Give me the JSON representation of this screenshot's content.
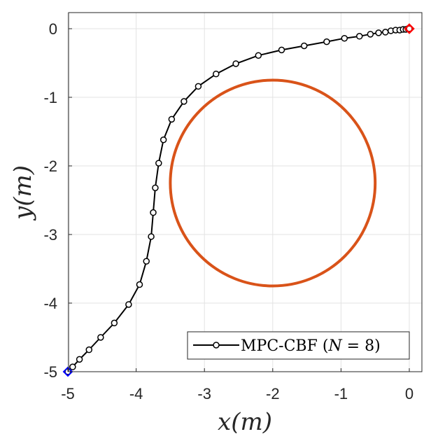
{
  "chart_data": {
    "type": "line",
    "xlabel": "x(m)",
    "ylabel": "y(m)",
    "xlim": [
      -5,
      0
    ],
    "ylim": [
      -5,
      0
    ],
    "x_ticks": [
      -5,
      -4,
      -3,
      -2,
      -1,
      0
    ],
    "y_ticks": [
      0,
      -1,
      -2,
      -3,
      -4,
      -5
    ],
    "x_tick_labels": [
      "-5",
      "-4",
      "-3",
      "-2",
      "-1",
      "0"
    ],
    "y_tick_labels": [
      "0",
      "-1",
      "-2",
      "-3",
      "-4",
      "-5"
    ],
    "grid": true,
    "legend_position": "bottom-right",
    "colors": {
      "trajectory": "#000000",
      "obstacle": "#d95319",
      "start_marker": "#0000ff",
      "goal_marker": "#ff0000",
      "grid": "#e3e3e3",
      "axis": "#262626"
    },
    "series": [
      {
        "name": "MPC-CBF (N = 8)",
        "marker": "circle",
        "x": [
          -5.0,
          -4.93,
          -4.83,
          -4.69,
          -4.52,
          -4.32,
          -4.11,
          -3.95,
          -3.85,
          -3.78,
          -3.75,
          -3.72,
          -3.67,
          -3.6,
          -3.48,
          -3.3,
          -3.09,
          -2.83,
          -2.54,
          -2.21,
          -1.87,
          -1.54,
          -1.21,
          -0.95,
          -0.73,
          -0.57,
          -0.45,
          -0.35,
          -0.27,
          -0.2,
          -0.14,
          -0.09,
          -0.05,
          -0.02,
          0.0
        ],
        "y": [
          -5.0,
          -4.93,
          -4.82,
          -4.68,
          -4.5,
          -4.29,
          -4.02,
          -3.73,
          -3.39,
          -3.03,
          -2.68,
          -2.32,
          -1.96,
          -1.62,
          -1.32,
          -1.06,
          -0.84,
          -0.66,
          -0.51,
          -0.39,
          -0.31,
          -0.25,
          -0.19,
          -0.14,
          -0.11,
          -0.08,
          -0.06,
          -0.05,
          -0.03,
          -0.02,
          -0.02,
          -0.01,
          -0.01,
          0.0,
          0.0
        ]
      }
    ],
    "obstacle": {
      "shape": "circle",
      "center": [
        -2.0,
        -2.25
      ],
      "radius": 1.5
    },
    "start": {
      "x": -5,
      "y": -5,
      "marker": "diamond"
    },
    "goal": {
      "x": 0,
      "y": 0,
      "marker": "diamond"
    },
    "legend": {
      "prefix": "MPC-CBF (",
      "var": "N",
      "suffix": " = 8)"
    }
  }
}
